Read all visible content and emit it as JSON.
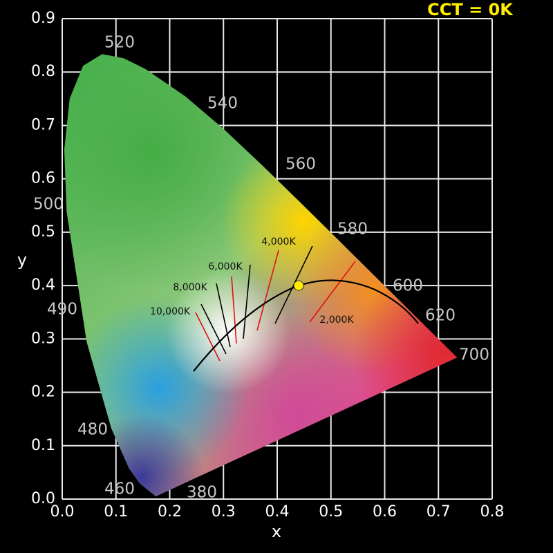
{
  "chart_data": {
    "type": "scatter",
    "title": "CCT = 0K",
    "x_label": "x",
    "y_label": "y",
    "xlim": [
      0,
      0.8
    ],
    "ylim": [
      0,
      0.9
    ],
    "xticks": [
      {
        "value": 0,
        "label": "0.0"
      },
      0.1,
      0.2,
      0.3,
      0.4,
      0.5,
      0.6,
      0.7,
      0.8
    ],
    "yticks": [
      {
        "value": 0,
        "label": "0.0"
      },
      0.1,
      0.2,
      0.3,
      0.4,
      0.5,
      0.6,
      0.7,
      0.8,
      0.9
    ],
    "grid": true,
    "x": [
      0.44
    ],
    "series": [
      {
        "color": "#ffee00",
        "values": [
          0.4
        ]
      }
    ],
    "wavelength_labels": [
      "520",
      "540",
      "560",
      "580",
      "600",
      "620",
      "700",
      "500",
      "490",
      "480",
      "460",
      "380"
    ],
    "isotherm_labels": [
      "10,000K",
      "8,000K",
      "6,000K",
      "4,000K",
      "2,000K"
    ]
  }
}
